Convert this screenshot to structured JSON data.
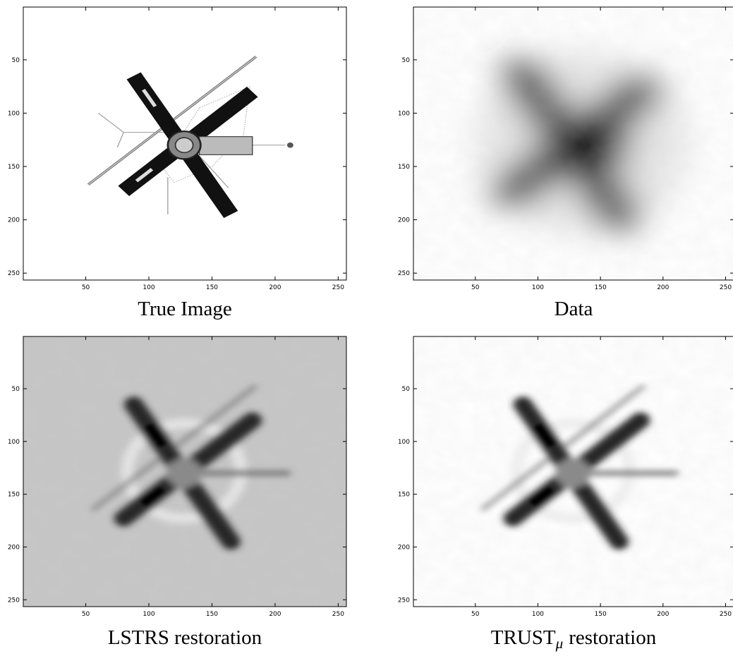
{
  "panels": [
    {
      "caption": "True Image",
      "xlim": [
        0.5,
        256.5
      ],
      "ylim": [
        0.5,
        256.5
      ],
      "xticks": [
        50,
        100,
        150,
        200,
        250
      ],
      "yticks": [
        50,
        100,
        150,
        200,
        250
      ]
    },
    {
      "caption": "Data",
      "xlim": [
        0.5,
        256.5
      ],
      "ylim": [
        0.5,
        256.5
      ],
      "xticks": [
        50,
        100,
        150,
        200,
        250
      ],
      "yticks": [
        50,
        100,
        150,
        200,
        250
      ]
    },
    {
      "caption": "LSTRS restoration",
      "xlim": [
        0.5,
        256.5
      ],
      "ylim": [
        0.5,
        256.5
      ],
      "xticks": [
        50,
        100,
        150,
        200,
        250
      ],
      "yticks": [
        50,
        100,
        150,
        200,
        250
      ]
    },
    {
      "caption": "TRUST",
      "caption_sub": "μ",
      "caption_rest": "restoration",
      "xlim": [
        0.5,
        256.5
      ],
      "ylim": [
        0.5,
        256.5
      ],
      "xticks": [
        50,
        100,
        150,
        200,
        250
      ],
      "yticks": [
        50,
        100,
        150,
        200,
        250
      ]
    }
  ]
}
